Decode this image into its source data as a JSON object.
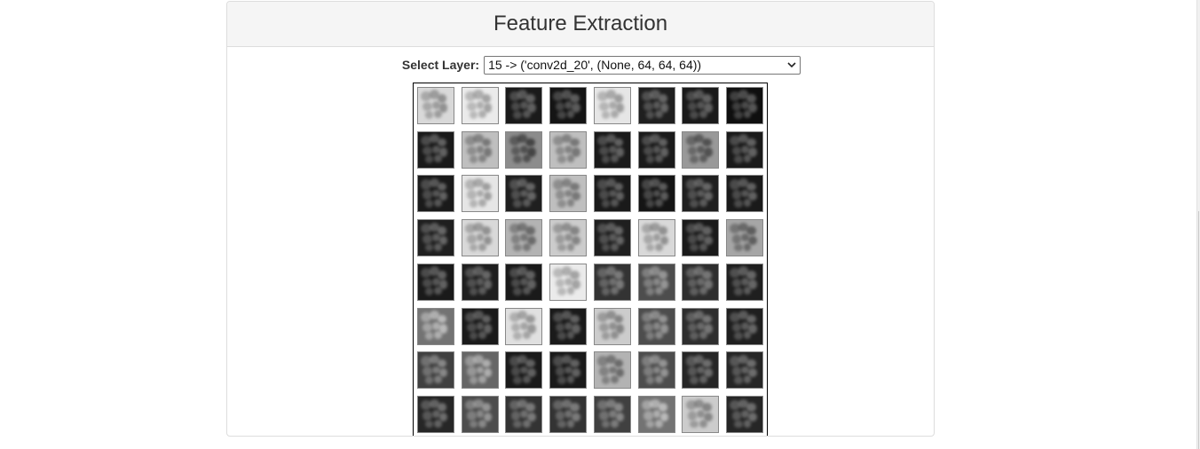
{
  "panel": {
    "title": "Feature Extraction"
  },
  "layer_select": {
    "label": "Select Layer:",
    "selected": "15 -> ('conv2d_20', (None, 64, 64, 64))"
  },
  "feature_map": {
    "rows": 8,
    "cols": 8,
    "brightness": [
      [
        0.85,
        0.92,
        0.1,
        0.08,
        0.9,
        0.12,
        0.1,
        0.06
      ],
      [
        0.1,
        0.75,
        0.55,
        0.75,
        0.1,
        0.1,
        0.6,
        0.1
      ],
      [
        0.1,
        0.9,
        0.12,
        0.75,
        0.1,
        0.08,
        0.12,
        0.1
      ],
      [
        0.12,
        0.85,
        0.7,
        0.8,
        0.12,
        0.85,
        0.1,
        0.65
      ],
      [
        0.1,
        0.12,
        0.1,
        0.92,
        0.2,
        0.3,
        0.18,
        0.12
      ],
      [
        0.45,
        0.1,
        0.88,
        0.1,
        0.8,
        0.3,
        0.18,
        0.12
      ],
      [
        0.25,
        0.4,
        0.1,
        0.1,
        0.7,
        0.3,
        0.15,
        0.15
      ],
      [
        0.15,
        0.3,
        0.2,
        0.2,
        0.25,
        0.45,
        0.8,
        0.15
      ]
    ]
  },
  "colors": {
    "heading_bg": "#f5f5f5",
    "panel_border": "#dddddd",
    "text": "#333333"
  },
  "icons": {
    "select_arrow": "chevron-down-icon"
  }
}
